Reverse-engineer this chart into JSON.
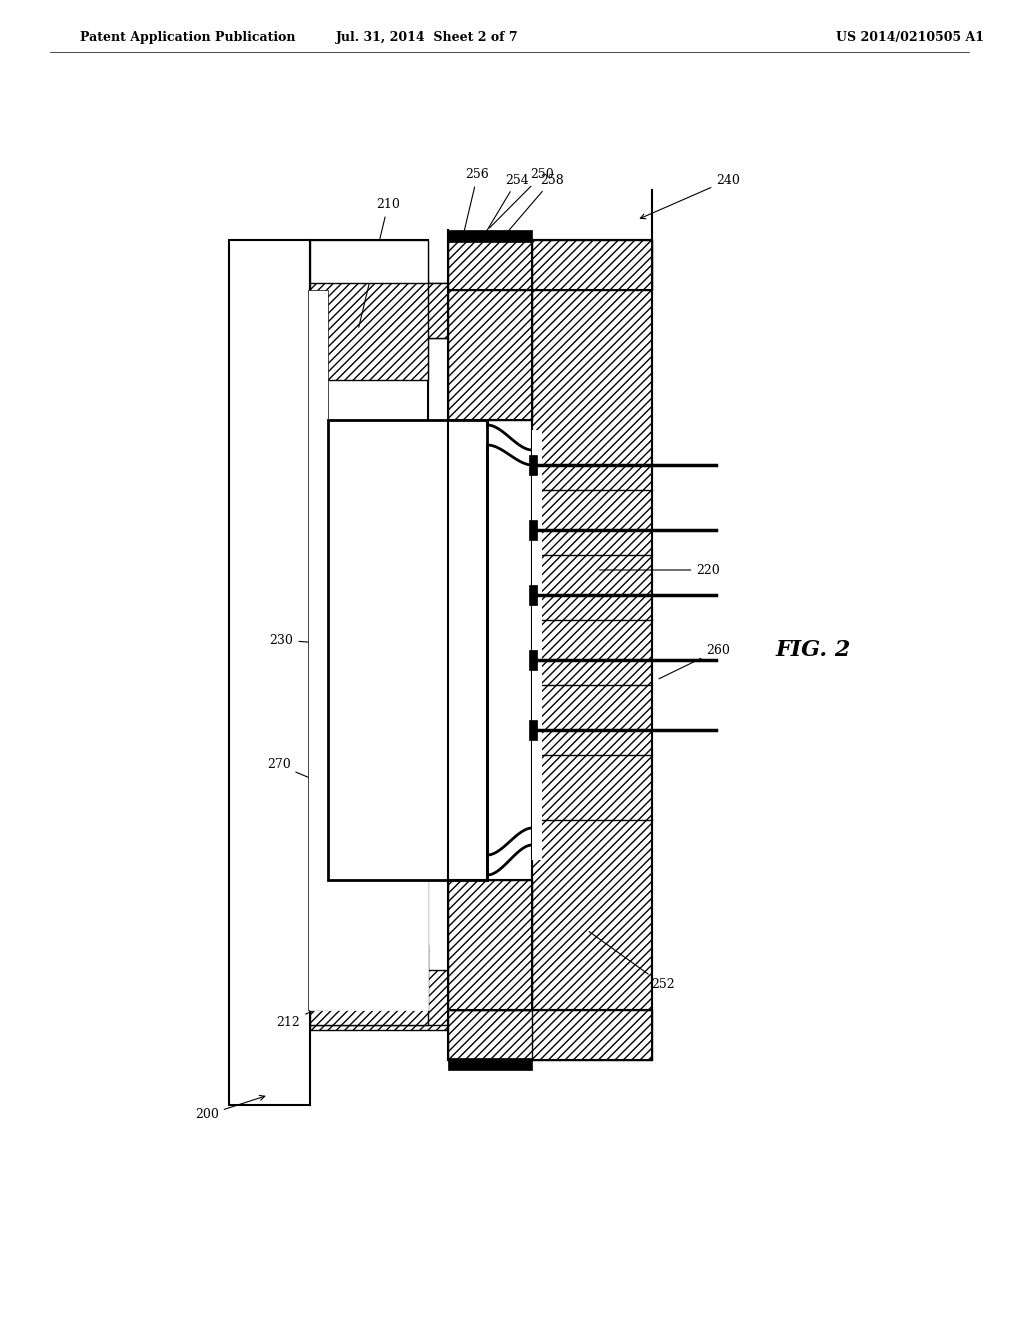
{
  "bg_color": "#ffffff",
  "header_left": "Patent Application Publication",
  "header_mid": "Jul. 31, 2014  Sheet 2 of 7",
  "header_right": "US 2014/0210505 A1",
  "fig_label": "FIG. 2"
}
